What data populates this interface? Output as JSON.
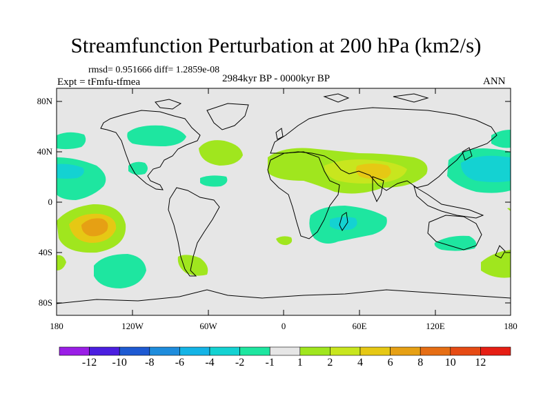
{
  "title": "Streamfunction Perturbation at 200 hPa (km2/s)",
  "stats": "rmsd= 0.951666 diff= 1.2859e-08",
  "experiment": "Expt = tFmfu-tfmea",
  "period": "2984kyr BP - 0000kyr BP",
  "season": "ANN",
  "map": {
    "projection": "cylindrical equidistant",
    "lon_range": [
      -180,
      180
    ],
    "lat_range": [
      -90,
      90
    ],
    "background_color": "#e6e6e6",
    "coastline_color": "#000000"
  },
  "axes": {
    "lat_labels": [
      "80N",
      "40N",
      "0",
      "40S",
      "80S"
    ],
    "lon_labels": [
      "180",
      "120W",
      "60W",
      "0",
      "60E",
      "120E",
      "180"
    ]
  },
  "colorbar": {
    "labels": [
      "-12",
      "-10",
      "-8",
      "-6",
      "-4",
      "-2",
      "-1",
      "1",
      "2",
      "4",
      "6",
      "8",
      "10",
      "12"
    ],
    "colors": [
      "#9a1ee6",
      "#4b1ee0",
      "#1e5ad2",
      "#1e8cdc",
      "#14b4e6",
      "#14d2d2",
      "#1ee6a0",
      "#e6e6e6",
      "#a0e61e",
      "#c8e61e",
      "#e6c814",
      "#e6a014",
      "#e66e14",
      "#e64b14",
      "#e61e14"
    ]
  },
  "anomalies": [
    {
      "label": "central Pacific south",
      "lon": -140,
      "lat": -18,
      "level": "6"
    },
    {
      "label": "Pacific 30N west",
      "lon": -170,
      "lat": 30,
      "level": "-2"
    },
    {
      "label": "North Africa to Asia",
      "lon": 60,
      "lat": 30,
      "level": "4"
    },
    {
      "label": "Madagascar",
      "lon": 55,
      "lat": -18,
      "level": "-2"
    },
    {
      "label": "western North Pacific",
      "lon": 160,
      "lat": 28,
      "level": "-4"
    },
    {
      "label": "north Atlantic",
      "lon": -40,
      "lat": 40,
      "level": "2"
    },
    {
      "label": "southern South America",
      "lon": -65,
      "lat": -48,
      "level": "2"
    },
    {
      "label": "south Pacific",
      "lon": -118,
      "lat": -52,
      "level": "-1"
    }
  ]
}
